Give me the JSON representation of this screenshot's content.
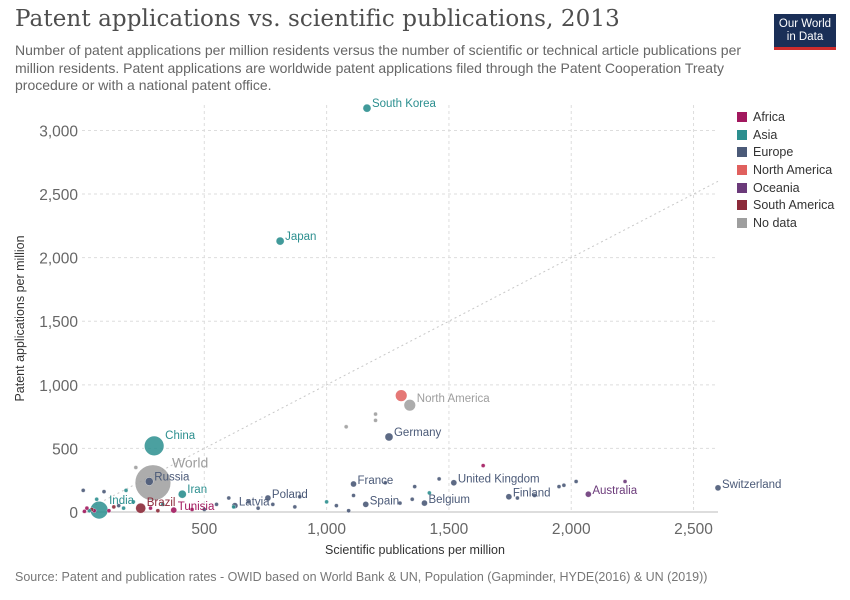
{
  "header": {
    "title": "Patent applications vs. scientific publications, 2013",
    "subtitle": "Number of patent applications per million residents versus the number of scientific or technical article publications per million residents. Patent applications are worldwide patent applications filed through the Patent Cooperation Treaty procedure or with a national patent office."
  },
  "logo": {
    "line1": "Our World",
    "line2": "in Data"
  },
  "footer": {
    "source": "Source: Patent and publication rates - OWID based on World Bank & UN, Population (Gapminder, HYDE(2016) & UN (2019))"
  },
  "legend": [
    {
      "label": "Africa",
      "color": "#a2185e"
    },
    {
      "label": "Asia",
      "color": "#2c8f8f"
    },
    {
      "label": "Europe",
      "color": "#4b5a78"
    },
    {
      "label": "North America",
      "color": "#e0605e"
    },
    {
      "label": "Oceania",
      "color": "#6b3a7a"
    },
    {
      "label": "South America",
      "color": "#8c2a3a"
    },
    {
      "label": "No data",
      "color": "#9e9e9e"
    }
  ],
  "chart_data": {
    "type": "scatter",
    "xlabel": "Scientific publications per million",
    "ylabel": "Patent applications per million",
    "xlim": [
      0,
      2600
    ],
    "ylim": [
      0,
      3200
    ],
    "xticks": [
      500,
      1000,
      1500,
      2000,
      2500
    ],
    "yticks": [
      0,
      500,
      1000,
      1500,
      2000,
      2500,
      3000
    ],
    "tick_labels_x": [
      "500",
      "1,000",
      "1,500",
      "2,000",
      "2,500"
    ],
    "tick_labels_y": [
      "0",
      "500",
      "1,000",
      "1,500",
      "2,000",
      "2,500",
      "3,000"
    ],
    "grid": true,
    "reference_line": "y = x",
    "legend_position": "right",
    "points": [
      {
        "x": 1165,
        "y": 3175,
        "group": "Asia",
        "label": "South Korea",
        "size": 4
      },
      {
        "x": 810,
        "y": 2130,
        "group": "Asia",
        "label": "Japan",
        "size": 4
      },
      {
        "x": 1305,
        "y": 915,
        "group": "North America",
        "label": "",
        "size": 6
      },
      {
        "x": 1340,
        "y": 840,
        "group": "No data",
        "label": "North America",
        "size": 6
      },
      {
        "x": 1255,
        "y": 590,
        "group": "Europe",
        "label": "Germany",
        "size": 4
      },
      {
        "x": 295,
        "y": 520,
        "group": "Asia",
        "label": "China",
        "size": 10
      },
      {
        "x": 290,
        "y": 230,
        "group": "No data",
        "label": "World",
        "size": 18
      },
      {
        "x": 275,
        "y": 240,
        "group": "Europe",
        "label": "Russia",
        "size": 4
      },
      {
        "x": 410,
        "y": 140,
        "group": "Asia",
        "label": "Iran",
        "size": 4
      },
      {
        "x": 70,
        "y": 15,
        "group": "Asia",
        "label": "India",
        "size": 9
      },
      {
        "x": 240,
        "y": 30,
        "group": "South America",
        "label": "Brazil",
        "size": 5
      },
      {
        "x": 375,
        "y": 15,
        "group": "Africa",
        "label": "Tunisia",
        "size": 3
      },
      {
        "x": 1110,
        "y": 220,
        "group": "Europe",
        "label": "France",
        "size": 3
      },
      {
        "x": 1520,
        "y": 230,
        "group": "Europe",
        "label": "United Kingdom",
        "size": 3
      },
      {
        "x": 1745,
        "y": 120,
        "group": "Europe",
        "label": "Finland",
        "size": 3
      },
      {
        "x": 2070,
        "y": 140,
        "group": "Oceania",
        "label": "Australia",
        "size": 3
      },
      {
        "x": 2600,
        "y": 190,
        "group": "Europe",
        "label": "Switzerland",
        "size": 3
      },
      {
        "x": 1160,
        "y": 60,
        "group": "Europe",
        "label": "Spain",
        "size": 3
      },
      {
        "x": 1400,
        "y": 70,
        "group": "Europe",
        "label": "Belgium",
        "size": 3
      },
      {
        "x": 625,
        "y": 50,
        "group": "Europe",
        "label": "Latvia",
        "size": 3
      },
      {
        "x": 760,
        "y": 110,
        "group": "Europe",
        "label": "Poland",
        "size": 3
      },
      {
        "x": 1080,
        "y": 670,
        "group": "No data",
        "label": "",
        "size": 2
      },
      {
        "x": 1200,
        "y": 770,
        "group": "No data",
        "label": "",
        "size": 2
      },
      {
        "x": 1200,
        "y": 720,
        "group": "No data",
        "label": "",
        "size": 2
      },
      {
        "x": 1640,
        "y": 365,
        "group": "Africa",
        "label": "",
        "size": 2
      },
      {
        "x": 1950,
        "y": 200,
        "group": "Europe",
        "label": "",
        "size": 2
      },
      {
        "x": 1970,
        "y": 210,
        "group": "Europe",
        "label": "",
        "size": 2
      },
      {
        "x": 2020,
        "y": 240,
        "group": "Europe",
        "label": "",
        "size": 2
      },
      {
        "x": 2220,
        "y": 240,
        "group": "Oceania",
        "label": "",
        "size": 2
      },
      {
        "x": 1850,
        "y": 130,
        "group": "Europe",
        "label": "",
        "size": 2
      },
      {
        "x": 1780,
        "y": 110,
        "group": "Europe",
        "label": "",
        "size": 2
      },
      {
        "x": 1460,
        "y": 260,
        "group": "Europe",
        "label": "",
        "size": 2
      },
      {
        "x": 1420,
        "y": 150,
        "group": "Asia",
        "label": "",
        "size": 2
      },
      {
        "x": 1360,
        "y": 200,
        "group": "Europe",
        "label": "",
        "size": 2
      },
      {
        "x": 1350,
        "y": 100,
        "group": "Europe",
        "label": "",
        "size": 2
      },
      {
        "x": 1300,
        "y": 70,
        "group": "Europe",
        "label": "",
        "size": 2
      },
      {
        "x": 1240,
        "y": 230,
        "group": "Europe",
        "label": "",
        "size": 2
      },
      {
        "x": 1110,
        "y": 130,
        "group": "Europe",
        "label": "",
        "size": 2
      },
      {
        "x": 1090,
        "y": 10,
        "group": "Europe",
        "label": "",
        "size": 2
      },
      {
        "x": 1040,
        "y": 50,
        "group": "Europe",
        "label": "",
        "size": 2
      },
      {
        "x": 1000,
        "y": 80,
        "group": "Asia",
        "label": "",
        "size": 2
      },
      {
        "x": 890,
        "y": 120,
        "group": "Europe",
        "label": "",
        "size": 2
      },
      {
        "x": 870,
        "y": 40,
        "group": "Europe",
        "label": "",
        "size": 2
      },
      {
        "x": 780,
        "y": 60,
        "group": "Europe",
        "label": "",
        "size": 2
      },
      {
        "x": 720,
        "y": 30,
        "group": "Europe",
        "label": "",
        "size": 2
      },
      {
        "x": 680,
        "y": 80,
        "group": "Europe",
        "label": "",
        "size": 2
      },
      {
        "x": 600,
        "y": 110,
        "group": "Europe",
        "label": "",
        "size": 2
      },
      {
        "x": 550,
        "y": 60,
        "group": "Europe",
        "label": "",
        "size": 2
      },
      {
        "x": 620,
        "y": 40,
        "group": "Asia",
        "label": "",
        "size": 2
      },
      {
        "x": 500,
        "y": 20,
        "group": "Europe",
        "label": "",
        "size": 2
      },
      {
        "x": 450,
        "y": 20,
        "group": "Africa",
        "label": "",
        "size": 2
      },
      {
        "x": 330,
        "y": 60,
        "group": "Asia",
        "label": "",
        "size": 2
      },
      {
        "x": 220,
        "y": 350,
        "group": "No data",
        "label": "",
        "size": 2
      },
      {
        "x": 210,
        "y": 80,
        "group": "Asia",
        "label": "",
        "size": 2
      },
      {
        "x": 180,
        "y": 170,
        "group": "Asia",
        "label": "",
        "size": 2
      },
      {
        "x": 170,
        "y": 30,
        "group": "Asia",
        "label": "",
        "size": 2
      },
      {
        "x": 150,
        "y": 50,
        "group": "Europe",
        "label": "",
        "size": 2
      },
      {
        "x": 130,
        "y": 40,
        "group": "South America",
        "label": "",
        "size": 2
      },
      {
        "x": 110,
        "y": 10,
        "group": "Africa",
        "label": "",
        "size": 2
      },
      {
        "x": 90,
        "y": 160,
        "group": "Europe",
        "label": "",
        "size": 2
      },
      {
        "x": 60,
        "y": 100,
        "group": "Asia",
        "label": "",
        "size": 2
      },
      {
        "x": 50,
        "y": 10,
        "group": "Africa",
        "label": "",
        "size": 2
      },
      {
        "x": 40,
        "y": 20,
        "group": "South America",
        "label": "",
        "size": 2
      },
      {
        "x": 30,
        "y": 10,
        "group": "Asia",
        "label": "",
        "size": 2
      },
      {
        "x": 20,
        "y": 30,
        "group": "Africa",
        "label": "",
        "size": 2
      },
      {
        "x": 10,
        "y": 5,
        "group": "Africa",
        "label": "",
        "size": 2
      },
      {
        "x": 5,
        "y": 170,
        "group": "Europe",
        "label": "",
        "size": 2
      },
      {
        "x": 280,
        "y": 30,
        "group": "Africa",
        "label": "",
        "size": 2
      },
      {
        "x": 310,
        "y": 10,
        "group": "South America",
        "label": "",
        "size": 2
      }
    ]
  }
}
